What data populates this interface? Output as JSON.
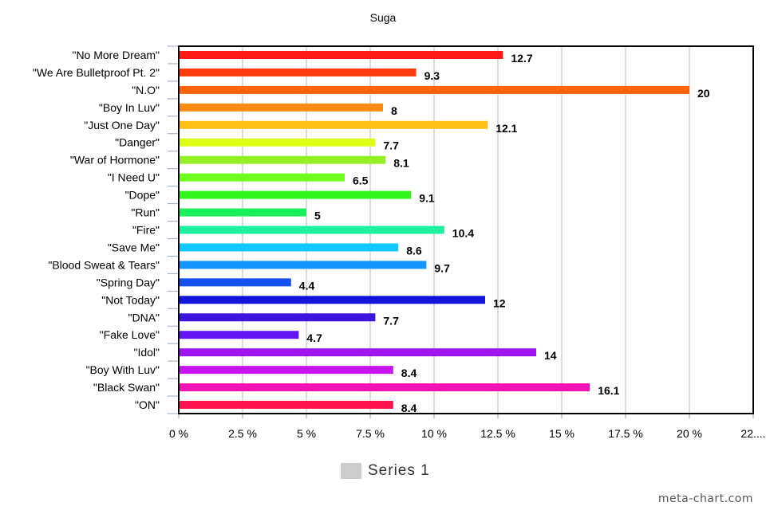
{
  "chart_data": {
    "type": "bar",
    "orientation": "horizontal",
    "title": "Suga",
    "categories": [
      "\"No More Dream\"",
      "\"We Are Bulletproof Pt. 2\"",
      "\"N.O\"",
      "\"Boy In Luv\"",
      "\"Just One Day\"",
      "\"Danger\"",
      "\"War of Hormone\"",
      "\"I Need U\"",
      "\"Dope\"",
      "\"Run\"",
      "\"Fire\"",
      "\"Save Me\"",
      "\"Blood Sweat & Tears\"",
      "\"Spring Day\"",
      "\"Not Today\"",
      "\"DNA\"",
      "\"Fake Love\"",
      "\"Idol\"",
      "\"Boy With Luv\"",
      "\"Black Swan\"",
      "\"ON\""
    ],
    "series": [
      {
        "name": "Series 1",
        "values": [
          12.7,
          9.3,
          20,
          8,
          12.1,
          7.7,
          8.1,
          6.5,
          9.1,
          5,
          10.4,
          8.6,
          9.7,
          4.4,
          12,
          7.7,
          4.7,
          14,
          8.4,
          16.1,
          8.4
        ],
        "value_labels": [
          "12.7",
          "9.3",
          "20",
          "8",
          "12.1",
          "7.7",
          "8.1",
          "6.5",
          "9.1",
          "5",
          "10.4",
          "8.6",
          "9.7",
          "4.4",
          "12",
          "7.7",
          "4.7",
          "14",
          "8.4",
          "16.1",
          "8.4"
        ],
        "colors": [
          "#ff1a1a",
          "#ff3d0f",
          "#ff640a",
          "#fa8c14",
          "#ffbf14",
          "#dcff14",
          "#96f028",
          "#6eff1e",
          "#32f51e",
          "#1af05a",
          "#1ef0a0",
          "#14c8ff",
          "#1496ff",
          "#1450f0",
          "#1414dc",
          "#3c14dc",
          "#6414f0",
          "#a014f0",
          "#c814f0",
          "#f014b4",
          "#ff1450"
        ]
      }
    ],
    "xlim": [
      0,
      22.5
    ],
    "x_ticks": [
      0,
      2.5,
      5,
      7.5,
      10,
      12.5,
      15,
      17.5,
      20,
      22.5
    ],
    "x_tick_labels": [
      "0 %",
      "2.5 %",
      "5 %",
      "7.5 %",
      "10 %",
      "12.5 %",
      "15 %",
      "17.5 %",
      "20 %",
      "22...."
    ],
    "xlabel": "",
    "ylabel": "",
    "grid": true,
    "legend": {
      "position": "bottom-center",
      "label": "Series 1",
      "color": "#cccccc"
    }
  },
  "credit": "meta-chart.com"
}
